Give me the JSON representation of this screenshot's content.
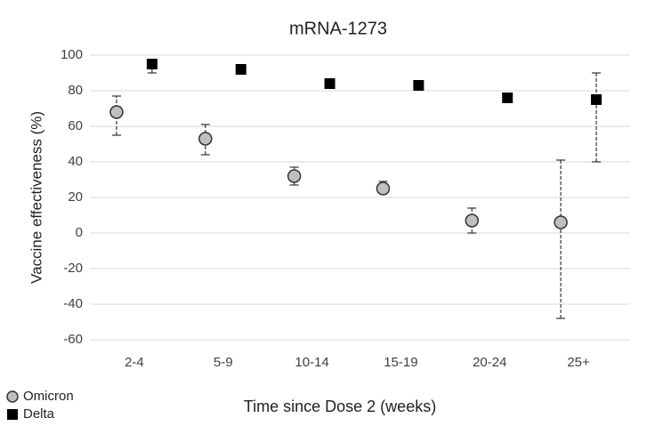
{
  "chart_data": {
    "type": "scatter",
    "title": "mRNA-1273",
    "x_label": "Time since Dose 2 (weeks)",
    "y_label": "Vaccine effectiveness (%)",
    "categories": [
      "2-4",
      "5-9",
      "10-14",
      "15-19",
      "20-24",
      "25+"
    ],
    "series": [
      {
        "name": "Omicron",
        "color": "#bfbfbf",
        "marker": "circle",
        "values": [
          68,
          53,
          32,
          25,
          7,
          6
        ],
        "ci_low": [
          55,
          44,
          27,
          23,
          0,
          -48
        ],
        "ci_high": [
          77,
          61,
          37,
          29,
          14,
          41
        ]
      },
      {
        "name": "Delta",
        "color": "#000000",
        "marker": "square",
        "values": [
          95,
          92,
          84,
          83,
          76,
          75
        ],
        "ci_low": [
          90,
          91,
          83,
          82,
          75,
          40
        ],
        "ci_high": [
          96,
          93,
          85,
          84,
          77,
          90
        ]
      }
    ],
    "ylim": [
      -60,
      100
    ],
    "yticks": [
      -60,
      -40,
      -20,
      0,
      20,
      40,
      60,
      80,
      100
    ],
    "grid": true,
    "legend": "bottom-left"
  }
}
